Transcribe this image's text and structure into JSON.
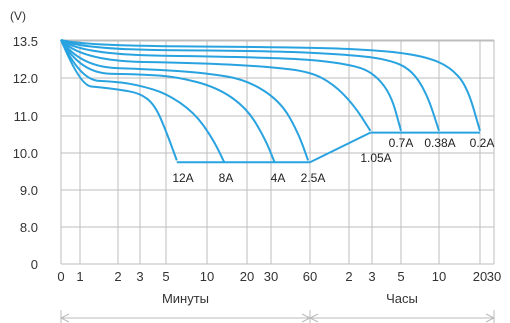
{
  "chart_data": {
    "type": "line",
    "y_unit": "(V)",
    "ylim": [
      0,
      13.5
    ],
    "x_scale": "log (0–1 linear)",
    "y_ticks": [
      {
        "value": 13.5,
        "label": "13.5"
      },
      {
        "value": 12.0,
        "label": "12.0"
      },
      {
        "value": 11.0,
        "label": "11.0"
      },
      {
        "value": 10.0,
        "label": "10.0"
      },
      {
        "value": 9.0,
        "label": "9.0"
      },
      {
        "value": 8.0,
        "label": "8.0"
      },
      {
        "value": 0,
        "label": "0"
      }
    ],
    "x_tick_labels": [
      "0",
      "1",
      "2",
      "3",
      "5",
      "10",
      "20",
      "30",
      "60",
      "2",
      "3",
      "5",
      "10",
      "20",
      "30"
    ],
    "x_sections": [
      {
        "label": "Минуты",
        "range_minutes": [
          0,
          60
        ]
      },
      {
        "label": "Часы",
        "range_minutes": [
          60,
          1800
        ]
      }
    ],
    "grid": true,
    "accent_color": "#29a3e0",
    "series": [
      {
        "name": "12A",
        "points": [
          [
            0,
            13.55
          ],
          [
            1,
            11.8
          ],
          [
            1.5,
            11.75
          ],
          [
            2,
            11.7
          ],
          [
            3,
            11.6
          ],
          [
            4,
            11.3
          ],
          [
            5,
            10.6
          ],
          [
            6,
            9.8
          ]
        ]
      },
      {
        "name": "8A",
        "points": [
          [
            0,
            13.55
          ],
          [
            1,
            11.95
          ],
          [
            2,
            11.9
          ],
          [
            3,
            11.8
          ],
          [
            5,
            11.6
          ],
          [
            8,
            11.1
          ],
          [
            11,
            10.4
          ],
          [
            13.5,
            9.75
          ]
        ]
      },
      {
        "name": "4A",
        "points": [
          [
            0,
            13.55
          ],
          [
            1,
            12.2
          ],
          [
            3,
            12.15
          ],
          [
            6,
            12.05
          ],
          [
            12,
            11.75
          ],
          [
            20,
            11.2
          ],
          [
            27,
            10.4
          ],
          [
            32,
            9.75
          ]
        ]
      },
      {
        "name": "2.5A",
        "points": [
          [
            0,
            13.55
          ],
          [
            1,
            12.45
          ],
          [
            4,
            12.35
          ],
          [
            10,
            12.2
          ],
          [
            20,
            11.95
          ],
          [
            35,
            11.4
          ],
          [
            48,
            10.6
          ],
          [
            58,
            9.8
          ]
        ]
      },
      {
        "name": "1.05A",
        "points": [
          [
            0,
            13.55
          ],
          [
            1,
            12.7
          ],
          [
            10,
            12.6
          ],
          [
            30,
            12.45
          ],
          [
            60,
            12.25
          ],
          [
            90,
            11.85
          ],
          [
            130,
            11.3
          ],
          [
            175,
            10.6
          ]
        ]
      },
      {
        "name": "0.7A",
        "points": [
          [
            0,
            13.55
          ],
          [
            1,
            12.95
          ],
          [
            20,
            12.85
          ],
          [
            60,
            12.75
          ],
          [
            120,
            12.55
          ],
          [
            180,
            12.25
          ],
          [
            250,
            11.6
          ],
          [
            300,
            10.6
          ]
        ]
      },
      {
        "name": "0.38A",
        "points": [
          [
            0,
            13.55
          ],
          [
            1,
            13.15
          ],
          [
            30,
            13.1
          ],
          [
            120,
            12.95
          ],
          [
            240,
            12.75
          ],
          [
            360,
            12.35
          ],
          [
            480,
            11.6
          ],
          [
            600,
            10.6
          ]
        ]
      },
      {
        "name": "0.2A",
        "points": [
          [
            0,
            13.55
          ],
          [
            1,
            13.3
          ],
          [
            60,
            13.25
          ],
          [
            240,
            13.1
          ],
          [
            480,
            12.85
          ],
          [
            720,
            12.45
          ],
          [
            960,
            11.8
          ],
          [
            1200,
            10.6
          ]
        ]
      }
    ],
    "cutoff_lines": [
      {
        "y": 9.75,
        "x_from": 6,
        "x_to": 60
      },
      {
        "y": 10.55,
        "x_from": 175,
        "x_to": 1200
      }
    ]
  }
}
